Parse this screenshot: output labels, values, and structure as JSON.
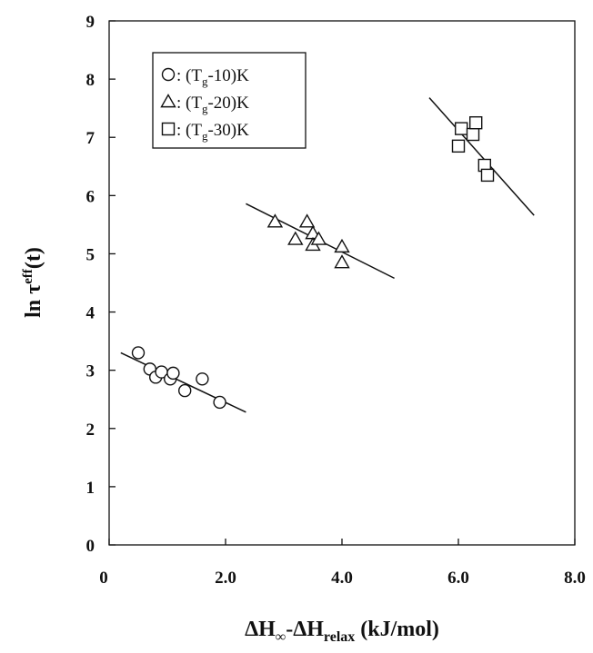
{
  "chart_data": {
    "type": "scatter",
    "title": "",
    "xlabel": "ΔH∞-ΔH(relax) (kJ/mol)",
    "xlabel_parts": {
      "delta1": "ΔH",
      "sub1": "∞",
      "dash": "-",
      "delta2": "ΔH",
      "sub2": "relax",
      "unit": " (kJ/mol)"
    },
    "ylabel": "ln τeff(t)",
    "ylabel_parts": {
      "base": "ln τ",
      "sup": "eff",
      "arg": "(t)"
    },
    "xlim": [
      0,
      8
    ],
    "ylim": [
      0,
      9
    ],
    "x_ticks": [
      {
        "value": 0,
        "label": "0"
      },
      {
        "value": 2,
        "label": "2.0"
      },
      {
        "value": 4,
        "label": "4.0"
      },
      {
        "value": 6,
        "label": "6.0"
      },
      {
        "value": 8,
        "label": "8.0"
      }
    ],
    "y_ticks": [
      {
        "value": 0,
        "label": "0"
      },
      {
        "value": 1,
        "label": "1"
      },
      {
        "value": 2,
        "label": "2"
      },
      {
        "value": 3,
        "label": "3"
      },
      {
        "value": 4,
        "label": "4"
      },
      {
        "value": 5,
        "label": "5"
      },
      {
        "value": 6,
        "label": "6"
      },
      {
        "value": 7,
        "label": "7"
      },
      {
        "value": 8,
        "label": "8"
      },
      {
        "value": 9,
        "label": "9"
      }
    ],
    "grid": false,
    "legend_position": "top-left",
    "series": [
      {
        "name": "(Tg-10)K",
        "legend": {
          "prefix": ": (T",
          "sub": "g",
          "suffix": "-10)K"
        },
        "marker": "circle",
        "points": [
          {
            "x": 0.5,
            "y": 3.3
          },
          {
            "x": 0.7,
            "y": 3.02
          },
          {
            "x": 0.8,
            "y": 2.88
          },
          {
            "x": 0.9,
            "y": 2.97
          },
          {
            "x": 1.05,
            "y": 2.85
          },
          {
            "x": 1.1,
            "y": 2.95
          },
          {
            "x": 1.3,
            "y": 2.65
          },
          {
            "x": 1.6,
            "y": 2.85
          },
          {
            "x": 1.9,
            "y": 2.45
          }
        ],
        "fit_line": [
          {
            "x": 0.2,
            "y": 3.3
          },
          {
            "x": 2.35,
            "y": 2.28
          }
        ]
      },
      {
        "name": "(Tg-20)K",
        "legend": {
          "prefix": ": (T",
          "sub": "g",
          "suffix": "-20)K"
        },
        "marker": "triangle",
        "points": [
          {
            "x": 2.85,
            "y": 5.55
          },
          {
            "x": 3.2,
            "y": 5.25
          },
          {
            "x": 3.4,
            "y": 5.55
          },
          {
            "x": 3.5,
            "y": 5.35
          },
          {
            "x": 3.5,
            "y": 5.15
          },
          {
            "x": 3.6,
            "y": 5.25
          },
          {
            "x": 4.0,
            "y": 5.12
          },
          {
            "x": 4.0,
            "y": 4.85
          }
        ],
        "fit_line": [
          {
            "x": 2.35,
            "y": 5.86
          },
          {
            "x": 4.9,
            "y": 4.58
          }
        ]
      },
      {
        "name": "(Tg-30)K",
        "legend": {
          "prefix": ": (T",
          "sub": "g",
          "suffix": "-30)K"
        },
        "marker": "square",
        "points": [
          {
            "x": 6.0,
            "y": 6.85
          },
          {
            "x": 6.05,
            "y": 7.15
          },
          {
            "x": 6.25,
            "y": 7.05
          },
          {
            "x": 6.3,
            "y": 7.25
          },
          {
            "x": 6.45,
            "y": 6.52
          },
          {
            "x": 6.5,
            "y": 6.35
          }
        ],
        "fit_line": [
          {
            "x": 5.5,
            "y": 7.68
          },
          {
            "x": 7.3,
            "y": 5.66
          }
        ]
      }
    ]
  }
}
